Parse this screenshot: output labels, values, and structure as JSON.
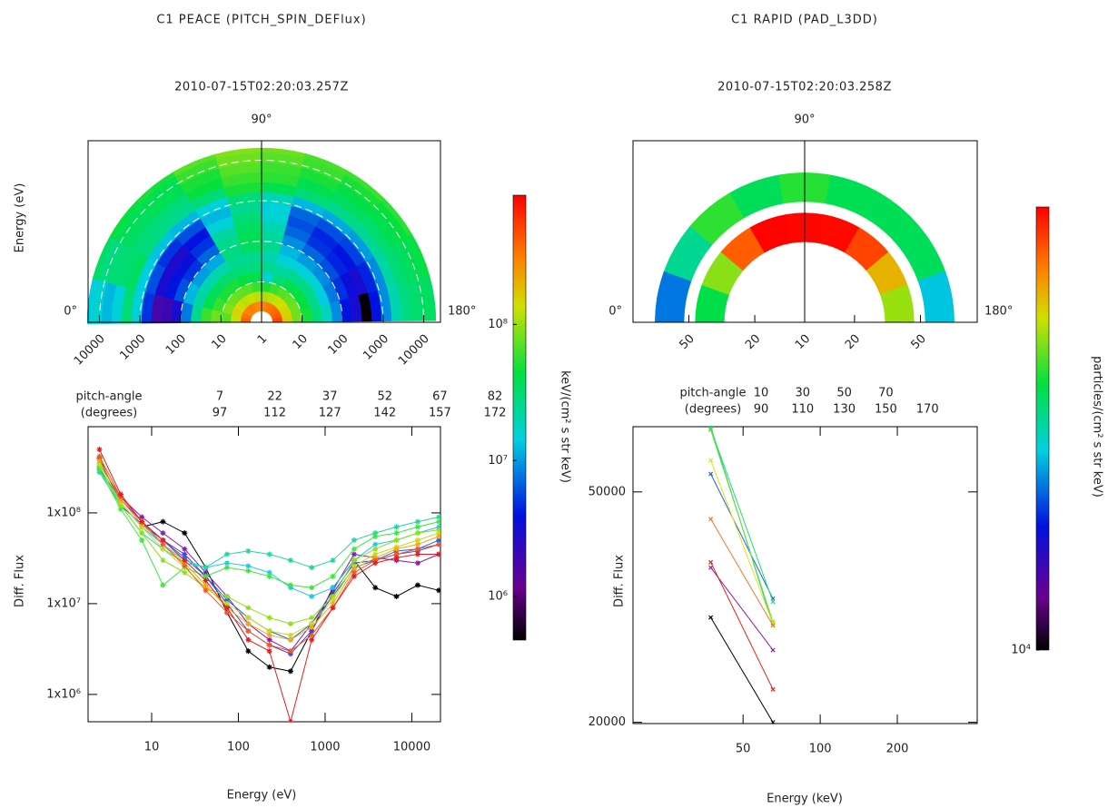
{
  "chart_data": [
    {
      "type": "line",
      "title": "C1 PEACE (PITCH_SPIN_DEFlux)",
      "subtitle": "2010-07-15T02:20:03.257Z",
      "xlabel": "Energy (eV)",
      "ylabel": "Diff. Flux",
      "log_x": true,
      "log_y": true,
      "marker": "asterisk",
      "x": [
        2.5,
        4.4,
        7.7,
        13.5,
        24,
        42,
        74,
        130,
        228,
        400,
        700,
        1230,
        2160,
        3790,
        6650,
        11700,
        20500
      ],
      "xlim": [
        1.85,
        21400
      ],
      "xticks": [
        10,
        100,
        1000,
        10000
      ],
      "ylim": [
        500000,
        890000000
      ],
      "yticks": [
        {
          "value": 1000000,
          "label": "1x10⁶"
        },
        {
          "value": 10000000,
          "label": "1x10⁷"
        },
        {
          "value": 100000000,
          "label": "1x10⁸"
        }
      ],
      "legend_title": [
        "pitch-angle",
        "(degrees)"
      ],
      "series": [
        {
          "name": "7",
          "color": "#000000",
          "values": [
            400000000.0,
            130000000.0,
            70000000.0,
            80000000.0,
            60000000.0,
            25000000.0,
            8000000.0,
            3000000.0,
            2000000.0,
            1800000.0,
            5000000.0,
            15000000.0,
            30000000.0,
            15000000.0,
            12000000.0,
            16000000.0,
            14000000.0
          ]
        },
        {
          "name": "22",
          "color": "#8c1ca8",
          "values": [
            350000000.0,
            150000000.0,
            90000000.0,
            60000000.0,
            40000000.0,
            22000000.0,
            12000000.0,
            6000000.0,
            4000000.0,
            3000000.0,
            6000000.0,
            14000000.0,
            35000000.0,
            32000000.0,
            30000000.0,
            28000000.0,
            35000000.0
          ]
        },
        {
          "name": "37",
          "color": "#4b3bd0",
          "values": [
            300000000.0,
            140000000.0,
            80000000.0,
            50000000.0,
            35000000.0,
            20000000.0,
            10000000.0,
            5000000.0,
            3500000.0,
            2800000.0,
            5000000.0,
            13000000.0,
            28000000.0,
            30000000.0,
            35000000.0,
            38000000.0,
            45000000.0
          ]
        },
        {
          "name": "52",
          "color": "#1f5fe8",
          "values": [
            320000000.0,
            120000000.0,
            75000000.0,
            50000000.0,
            32000000.0,
            20000000.0,
            11000000.0,
            7000000.0,
            5000000.0,
            4000000.0,
            6000000.0,
            12000000.0,
            25000000.0,
            30000000.0,
            38000000.0,
            40000000.0,
            50000000.0
          ]
        },
        {
          "name": "67",
          "color": "#1fc8e8",
          "values": [
            300000000.0,
            130000000.0,
            70000000.0,
            45000000.0,
            30000000.0,
            25000000.0,
            28000000.0,
            26000000.0,
            22000000.0,
            15000000.0,
            12000000.0,
            15000000.0,
            30000000.0,
            45000000.0,
            50000000.0,
            60000000.0,
            70000000.0
          ]
        },
        {
          "name": "82",
          "color": "#1fd8a0",
          "values": [
            280000000.0,
            120000000.0,
            60000000.0,
            40000000.0,
            28000000.0,
            25000000.0,
            35000000.0,
            38000000.0,
            35000000.0,
            30000000.0,
            25000000.0,
            30000000.0,
            50000000.0,
            60000000.0,
            70000000.0,
            80000000.0,
            90000000.0
          ]
        },
        {
          "name": "97",
          "color": "#3ce83c",
          "values": [
            300000000.0,
            110000000.0,
            50000000.0,
            16000000.0,
            25000000.0,
            20000000.0,
            25000000.0,
            23000000.0,
            20000000.0,
            16000000.0,
            15000000.0,
            20000000.0,
            40000000.0,
            55000000.0,
            60000000.0,
            70000000.0,
            80000000.0
          ]
        },
        {
          "name": "112",
          "color": "#8ce01c",
          "values": [
            330000000.0,
            120000000.0,
            60000000.0,
            30000000.0,
            22000000.0,
            15000000.0,
            12000000.0,
            9000000.0,
            7000000.0,
            6000000.0,
            7000000.0,
            12000000.0,
            30000000.0,
            40000000.0,
            50000000.0,
            60000000.0,
            65000000.0
          ]
        },
        {
          "name": "127",
          "color": "#c8dc1c",
          "values": [
            350000000.0,
            130000000.0,
            70000000.0,
            40000000.0,
            25000000.0,
            15000000.0,
            10000000.0,
            7000000.0,
            5000000.0,
            4500000.0,
            6000000.0,
            11000000.0,
            26000000.0,
            35000000.0,
            42000000.0,
            50000000.0,
            60000000.0
          ]
        },
        {
          "name": "142",
          "color": "#f0a81c",
          "values": [
            380000000.0,
            140000000.0,
            75000000.0,
            45000000.0,
            28000000.0,
            16000000.0,
            9000000.0,
            6000000.0,
            4500000.0,
            4000000.0,
            5500000.0,
            10000000.0,
            24000000.0,
            32000000.0,
            40000000.0,
            45000000.0,
            55000000.0
          ]
        },
        {
          "name": "157",
          "color": "#f05a28",
          "values": [
            420000000.0,
            150000000.0,
            80000000.0,
            45000000.0,
            26000000.0,
            14000000.0,
            8000000.0,
            5000000.0,
            3500000.0,
            3000000.0,
            4500000.0,
            9000000.0,
            22000000.0,
            30000000.0,
            35000000.0,
            40000000.0,
            45000000.0
          ]
        },
        {
          "name": "172",
          "color": "#e81c1c",
          "values": [
            500000000.0,
            160000000.0,
            80000000.0,
            50000000.0,
            30000000.0,
            18000000.0,
            9000000.0,
            4000000.0,
            3000000.0,
            500000.0,
            4000000.0,
            9000000.0,
            20000000.0,
            28000000.0,
            32000000.0,
            35000000.0,
            35000000.0
          ]
        }
      ],
      "polar": {
        "ylabel": "Energy (eV)",
        "angle_labels": [
          "0°",
          "90°",
          "180°"
        ],
        "angle_label_color": "#f04848",
        "rlim": [
          1,
          20000
        ],
        "rticks": [
          1,
          10,
          100,
          1000,
          10000
        ],
        "guide_circles": true
      },
      "colorbar": {
        "label": "keV/(cm² s str keV)",
        "clim": [
          480000,
          890000000
        ],
        "cticks": [
          {
            "value": 1000000,
            "label": "10⁶"
          },
          {
            "value": 10000000,
            "label": "10⁷"
          },
          {
            "value": 100000000,
            "label": "10⁸"
          }
        ]
      }
    },
    {
      "type": "line",
      "title": "C1 RAPID (PAD_L3DD)",
      "subtitle": "2010-07-15T02:20:03.258Z",
      "xlabel": "Energy (keV)",
      "ylabel": "Diff. Flux",
      "log_x": true,
      "log_y": true,
      "marker": "cross",
      "x": [
        37.4,
        65.4
      ],
      "xlim": [
        18.6,
        410
      ],
      "xticks": [
        50,
        100,
        200
      ],
      "ylim": [
        19900,
        64800
      ],
      "yticks": [
        20000,
        50000
      ],
      "legend_title": [
        "pitch-angle",
        "(degrees)"
      ],
      "series": [
        {
          "name": "10",
          "color": "#000000",
          "values": [
            30350,
            20000
          ]
        },
        {
          "name": "30",
          "color": "#8c1ca8",
          "values": [
            37000,
            26650
          ]
        },
        {
          "name": "50",
          "color": "#1f5fe8",
          "values": [
            53700,
            32700
          ]
        },
        {
          "name": "70",
          "color": "#1fc8e8",
          "values": [
            64800,
            29400
          ]
        },
        {
          "name": "90",
          "color": "#1ee070",
          "values": [
            64300,
            32300
          ]
        },
        {
          "name": "110",
          "color": "#6ce01c",
          "values": [
            64000,
            29800
          ]
        },
        {
          "name": "130",
          "color": "#e0e01c",
          "values": [
            56700,
            29600
          ]
        },
        {
          "name": "150",
          "color": "#f07a28",
          "values": [
            44900,
            29400
          ]
        },
        {
          "name": "170",
          "color": "#e81c1c",
          "values": [
            37800,
            22800
          ]
        }
      ],
      "polar": {
        "angle_labels": [
          "0°",
          "90°",
          "180°"
        ],
        "angle_label_color": "#f04848",
        "rlim": [
          10,
          110
        ],
        "rticks": [
          10,
          20,
          50
        ],
        "guide_circles": false
      },
      "colorbar": {
        "label": "particles/(cm² s str keV)",
        "clim": [
          10000,
          65000
        ],
        "cticks": [
          {
            "value": 10000,
            "label": "10⁴"
          }
        ]
      }
    }
  ]
}
